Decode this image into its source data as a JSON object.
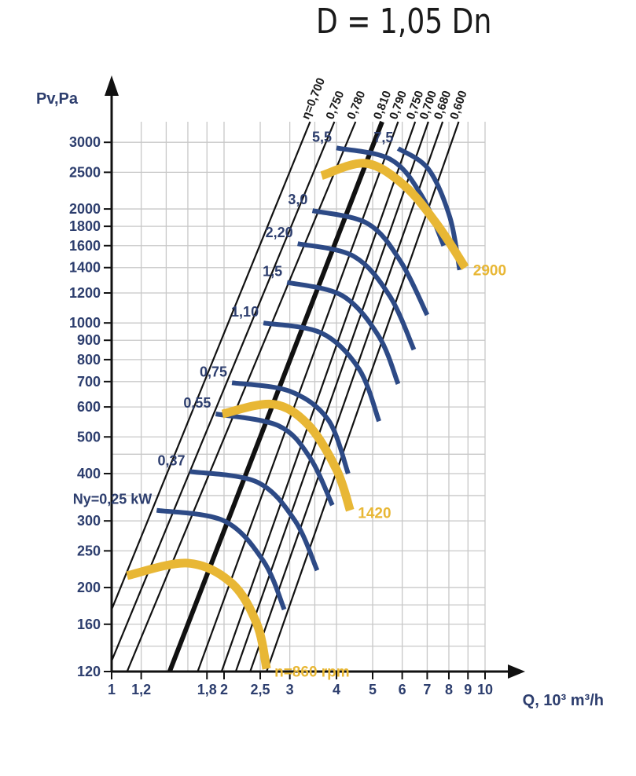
{
  "chart_data": {
    "type": "line",
    "title": "D = 1,05 Dn",
    "xlabel": "Q, 10³ m³/h",
    "ylabel": "Pv,Pa",
    "x_scale": "log",
    "y_scale": "log",
    "xlim": [
      1,
      10
    ],
    "ylim": [
      120,
      3400
    ],
    "x_ticks": [
      {
        "v": 1,
        "label": "1"
      },
      {
        "v": 1.2,
        "label": "1,2"
      },
      {
        "v": 1.8,
        "label": "1,8"
      },
      {
        "v": 2,
        "label": "2"
      },
      {
        "v": 2.5,
        "label": "2,5"
      },
      {
        "v": 3,
        "label": "3"
      },
      {
        "v": 4,
        "label": "4"
      },
      {
        "v": 5,
        "label": "5"
      },
      {
        "v": 6,
        "label": "6"
      },
      {
        "v": 7,
        "label": "7"
      },
      {
        "v": 8,
        "label": "8"
      },
      {
        "v": 9,
        "label": "9"
      },
      {
        "v": 10,
        "label": "10"
      }
    ],
    "y_ticks": [
      {
        "v": 120,
        "label": "120"
      },
      {
        "v": 160,
        "label": "160"
      },
      {
        "v": 200,
        "label": "200"
      },
      {
        "v": 250,
        "label": "250"
      },
      {
        "v": 300,
        "label": "300"
      },
      {
        "v": 400,
        "label": "400"
      },
      {
        "v": 500,
        "label": "500"
      },
      {
        "v": 600,
        "label": "600"
      },
      {
        "v": 700,
        "label": "700"
      },
      {
        "v": 800,
        "label": "800"
      },
      {
        "v": 900,
        "label": "900"
      },
      {
        "v": 1000,
        "label": "1000"
      },
      {
        "v": 1200,
        "label": "1200"
      },
      {
        "v": 1400,
        "label": "1400"
      },
      {
        "v": 1600,
        "label": "1600"
      },
      {
        "v": 1800,
        "label": "1800"
      },
      {
        "v": 2000,
        "label": "2000"
      },
      {
        "v": 2500,
        "label": "2500"
      },
      {
        "v": 3000,
        "label": "3000"
      }
    ],
    "grid_x": [
      1.2,
      1.4,
      1.6,
      1.8,
      2,
      2.5,
      3,
      3.5,
      4,
      5,
      6,
      7,
      8,
      9,
      10
    ],
    "grid_y": [
      140,
      160,
      180,
      200,
      250,
      300,
      350,
      400,
      450,
      500,
      600,
      700,
      800,
      900,
      1000,
      1200,
      1400,
      1600,
      1800,
      2000,
      2500,
      3000
    ],
    "efficiency_lines": [
      {
        "label": "η=0,700",
        "points": [
          [
            1,
            175
          ],
          [
            3.4,
            3400
          ]
        ]
      },
      {
        "label": "0,750",
        "points": [
          [
            1,
            128
          ],
          [
            3.95,
            3400
          ]
        ]
      },
      {
        "label": "0,780",
        "points": [
          [
            1.1,
            120
          ],
          [
            4.5,
            3400
          ]
        ]
      },
      {
        "label": "0,810",
        "points": [
          [
            1.43,
            120
          ],
          [
            5.3,
            3400
          ]
        ],
        "bold": true
      },
      {
        "label": "0,790",
        "points": [
          [
            1.7,
            120
          ],
          [
            5.85,
            3400
          ]
        ]
      },
      {
        "label": "0,750",
        "points": [
          [
            1.97,
            120
          ],
          [
            6.5,
            3400
          ]
        ]
      },
      {
        "label": "0,700",
        "points": [
          [
            2.15,
            120
          ],
          [
            7.05,
            3400
          ]
        ]
      },
      {
        "label": "0,680",
        "points": [
          [
            2.35,
            120
          ],
          [
            7.7,
            3400
          ]
        ]
      },
      {
        "label": "0,600",
        "points": [
          [
            2.6,
            120
          ],
          [
            8.5,
            3400
          ]
        ]
      }
    ],
    "speed_curves": [
      {
        "label": "n=860 rpm",
        "points": [
          [
            1.1,
            215
          ],
          [
            1.6,
            232
          ],
          [
            2.1,
            205
          ],
          [
            2.45,
            160
          ],
          [
            2.6,
            122
          ]
        ]
      },
      {
        "label": "1420",
        "points": [
          [
            1.98,
            575
          ],
          [
            2.7,
            610
          ],
          [
            3.35,
            540
          ],
          [
            4.0,
            410
          ],
          [
            4.35,
            320
          ]
        ]
      },
      {
        "label": "2900",
        "points": [
          [
            3.65,
            2450
          ],
          [
            4.8,
            2640
          ],
          [
            6.1,
            2300
          ],
          [
            7.5,
            1800
          ],
          [
            8.85,
            1400
          ]
        ]
      }
    ],
    "power_curves": [
      {
        "label": "Ny=0,25 kW",
        "points": [
          [
            1.32,
            320
          ],
          [
            2.0,
            300
          ],
          [
            2.55,
            235
          ],
          [
            2.9,
            175
          ]
        ]
      },
      {
        "label": "0,37",
        "points": [
          [
            1.62,
            405
          ],
          [
            2.45,
            380
          ],
          [
            3.1,
            300
          ],
          [
            3.55,
            222
          ]
        ]
      },
      {
        "label": "0,55",
        "points": [
          [
            1.9,
            575
          ],
          [
            2.8,
            535
          ],
          [
            3.4,
            440
          ],
          [
            3.9,
            330
          ]
        ]
      },
      {
        "label": "0,75",
        "points": [
          [
            2.1,
            695
          ],
          [
            3.0,
            660
          ],
          [
            3.8,
            555
          ],
          [
            4.3,
            400
          ]
        ]
      },
      {
        "label": "1,10",
        "points": [
          [
            2.55,
            1000
          ],
          [
            3.65,
            940
          ],
          [
            4.6,
            755
          ],
          [
            5.2,
            550
          ]
        ]
      },
      {
        "label": "1,5",
        "points": [
          [
            2.95,
            1280
          ],
          [
            4.15,
            1180
          ],
          [
            5.2,
            920
          ],
          [
            5.85,
            690
          ]
        ]
      },
      {
        "label": "2,20",
        "points": [
          [
            3.15,
            1620
          ],
          [
            4.45,
            1500
          ],
          [
            5.55,
            1180
          ],
          [
            6.45,
            850
          ]
        ]
      },
      {
        "label": "3,0",
        "points": [
          [
            3.45,
            1980
          ],
          [
            4.85,
            1830
          ],
          [
            5.95,
            1450
          ],
          [
            7.0,
            1050
          ]
        ]
      },
      {
        "label": "5,5",
        "points": [
          [
            4.0,
            2900
          ],
          [
            5.6,
            2700
          ],
          [
            6.8,
            2150
          ],
          [
            7.75,
            1600
          ]
        ]
      },
      {
        "label": "7,5",
        "points": [
          [
            5.85,
            2890
          ],
          [
            7.05,
            2550
          ],
          [
            8.05,
            1900
          ],
          [
            8.55,
            1380
          ]
        ]
      }
    ],
    "colors": {
      "axis": "#111111",
      "grid": "#c8c8c8",
      "efficiency": "#111111",
      "speed": "#e8b735",
      "power": "#2d4a86",
      "text_blue": "#2d3e6e"
    }
  }
}
